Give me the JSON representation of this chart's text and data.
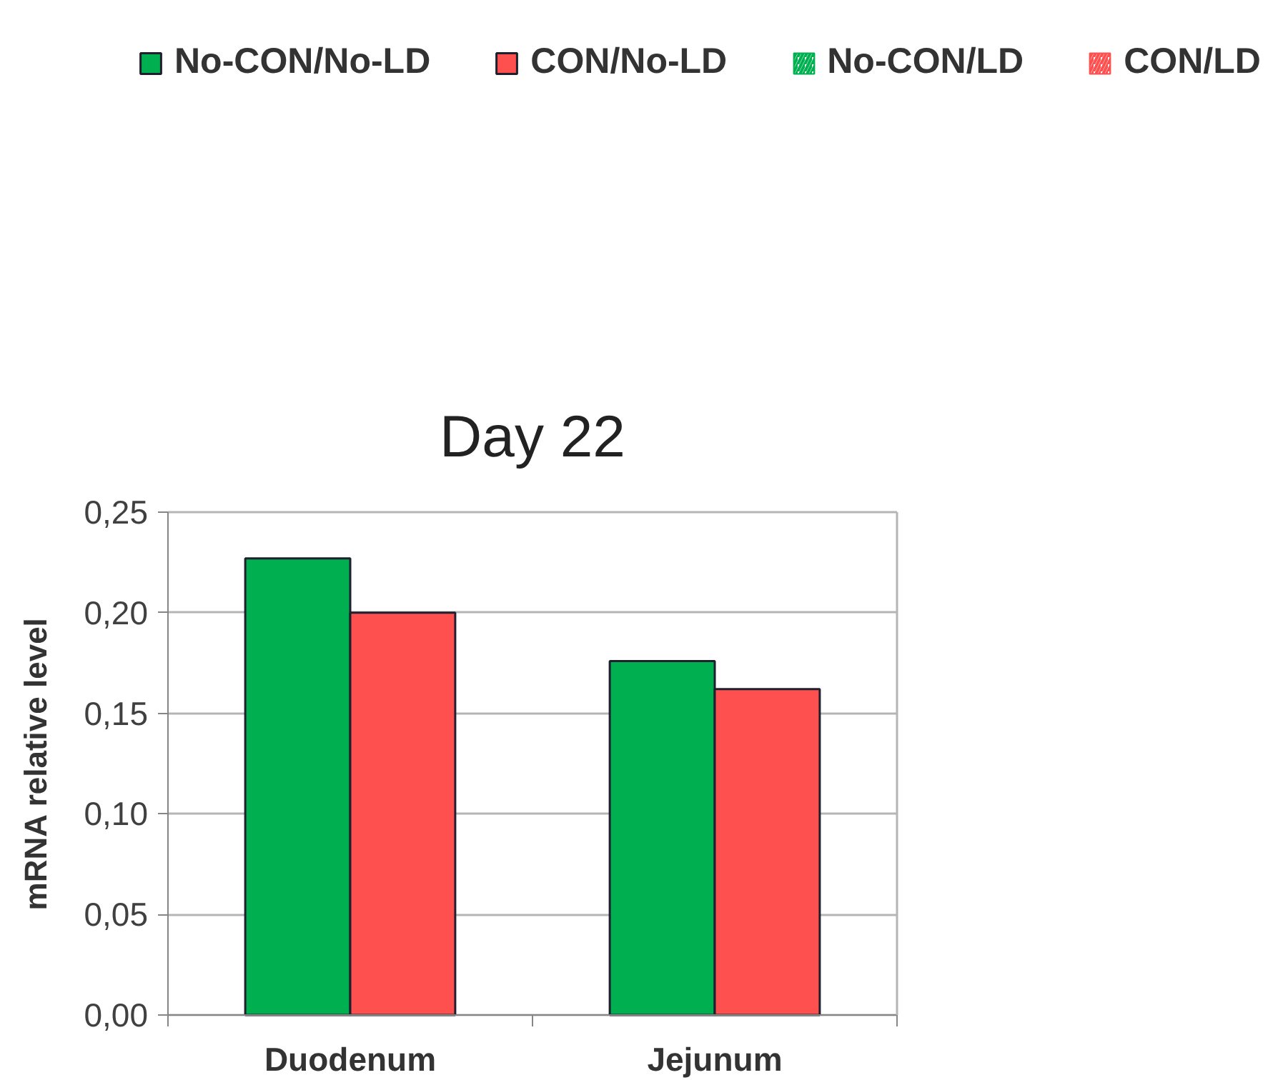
{
  "chart_data": {
    "type": "bar",
    "title": "Day 22",
    "ylabel": "mRNA relative level",
    "categories": [
      "Duodenum",
      "Jejunum"
    ],
    "series": [
      {
        "name": "No-CON/No-LD",
        "color": "#00b050",
        "values": [
          0.227,
          0.176
        ]
      },
      {
        "name": "CON/No-LD",
        "color": "#ff5050",
        "values": [
          0.2,
          0.162
        ]
      },
      {
        "name": "No-CON/LD",
        "color": "#00b050",
        "values": [
          null,
          null
        ]
      },
      {
        "name": "CON/LD",
        "color": "#ff5050",
        "values": [
          null,
          null
        ]
      }
    ],
    "ylim": [
      0,
      0.25
    ],
    "yticks": [
      {
        "value": 0,
        "label": "0,00"
      },
      {
        "value": 0.05,
        "label": "0,05"
      },
      {
        "value": 0.1,
        "label": "0,10"
      },
      {
        "value": 0.15,
        "label": "0,15"
      },
      {
        "value": 0.2,
        "label": "0,20"
      },
      {
        "value": 0.25,
        "label": "0,25"
      }
    ],
    "grid": "y",
    "legend": "top"
  }
}
